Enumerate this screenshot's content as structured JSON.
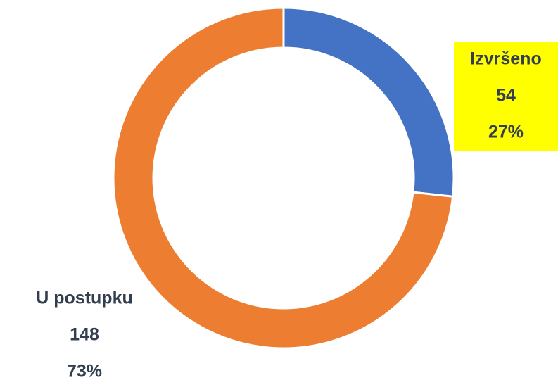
{
  "chart_data": {
    "type": "donut",
    "categories": [
      "Izvršeno",
      "U postupku"
    ],
    "values": [
      54,
      148
    ],
    "percent_labels": [
      "27%",
      "73%"
    ],
    "colors": [
      "#4472c4",
      "#ed7d31"
    ],
    "label_background": [
      "#ffff00",
      null
    ]
  }
}
